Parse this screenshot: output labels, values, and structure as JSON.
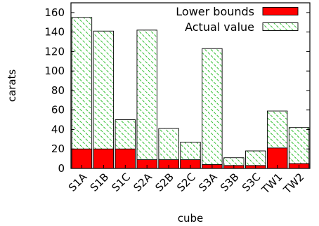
{
  "chart_data": {
    "type": "bar",
    "stacked_overlay": true,
    "categories": [
      "S1A",
      "S1B",
      "S1C",
      "S2A",
      "S2B",
      "S2C",
      "S3A",
      "S3B",
      "S3C",
      "TW1",
      "TW2"
    ],
    "series": [
      {
        "name": "Actual value",
        "values": [
          155,
          141,
          50,
          142,
          41,
          27,
          123,
          11,
          18,
          59,
          42
        ]
      },
      {
        "name": "Lower bounds",
        "values": [
          20,
          20,
          20,
          9,
          9,
          9,
          4,
          3,
          3,
          21,
          5
        ]
      }
    ],
    "xlabel": "cube",
    "ylabel": "carats",
    "ylim": [
      0,
      170
    ],
    "yticks": [
      0,
      20,
      40,
      60,
      80,
      100,
      120,
      140,
      160
    ],
    "grid": false,
    "legend_position": "top-right",
    "colors": {
      "lower_bounds": "#ff0000",
      "actual_value": "#00a000"
    }
  }
}
